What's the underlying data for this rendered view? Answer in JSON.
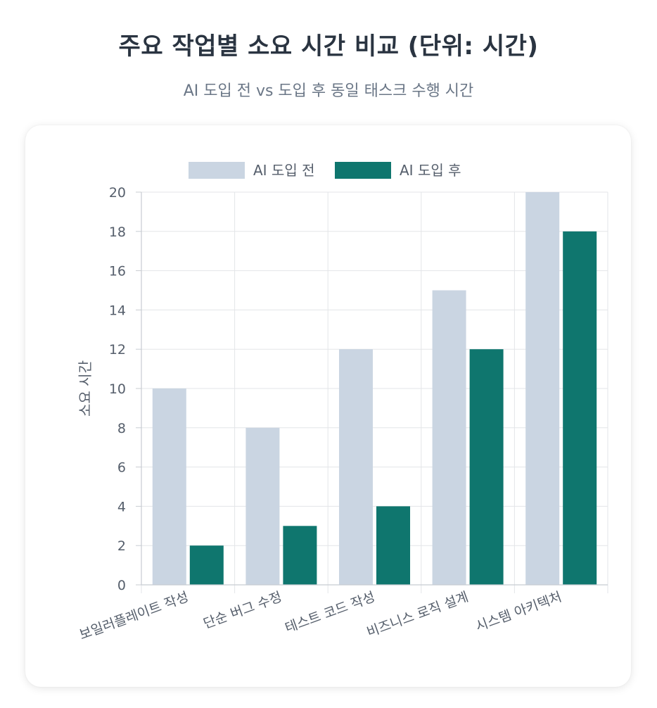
{
  "header": {
    "title": "주요 작업별 소요 시간 비교 (단위: 시간)",
    "subtitle": "AI 도입 전 vs 도입 후 동일 태스크 수행 시간"
  },
  "colors": {
    "before": "#cad5e2",
    "after": "#0f766e",
    "grid": "#e3e5e8",
    "axis": "#c8ccd2",
    "text": "#555e6b"
  },
  "chart_data": {
    "type": "bar",
    "title": "주요 작업별 소요 시간 비교 (단위: 시간)",
    "subtitle": "AI 도입 전 vs 도입 후 동일 태스크 수행 시간",
    "xlabel": "",
    "ylabel": "소요 시간",
    "ylim": [
      0,
      20
    ],
    "yticks": [
      0,
      2,
      4,
      6,
      8,
      10,
      12,
      14,
      16,
      18,
      20
    ],
    "grid": true,
    "legend_position": "top-center",
    "categories": [
      "보일러플레이트 작성",
      "단순 버그 수정",
      "테스트 코드 작성",
      "비즈니스 로직 설계",
      "시스템 아키텍처"
    ],
    "series": [
      {
        "name": "AI 도입 전",
        "values": [
          10,
          8,
          12,
          15,
          20
        ]
      },
      {
        "name": "AI 도입 후",
        "values": [
          2,
          3,
          4,
          12,
          18
        ]
      }
    ]
  }
}
